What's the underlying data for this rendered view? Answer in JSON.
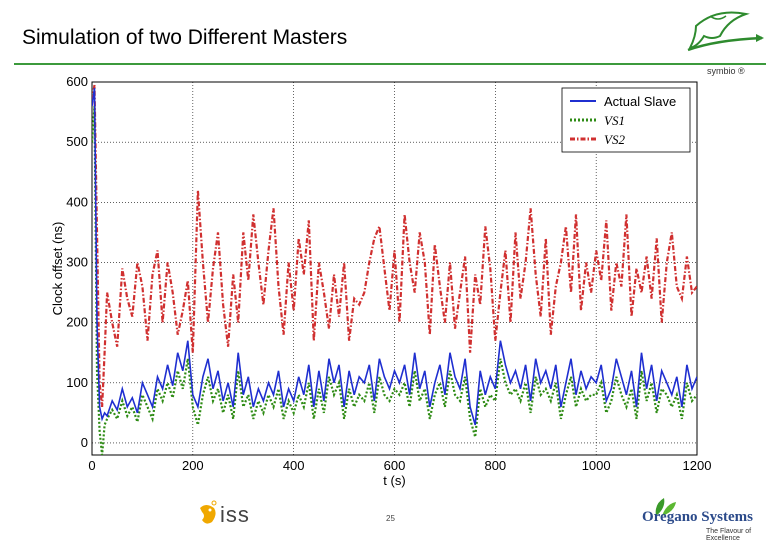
{
  "slide": {
    "title": "Simulation of two Different Masters",
    "page_number": "25"
  },
  "logos": {
    "symbio": {
      "text": "symbio ®",
      "color": "#2e8b2e"
    },
    "iss": {
      "text": "iss",
      "icon": "iss-fish-icon",
      "color": "#f0a800"
    },
    "oregano": {
      "name": "Oregano Systems",
      "tagline": "The Flavour of Excellence",
      "icon": "leaf-icon",
      "color": "#2b4a8a"
    }
  },
  "chart_data": {
    "type": "line",
    "title": "",
    "xlabel": "t (s)",
    "ylabel": "Clock offset (ns)",
    "xlim": [
      0,
      1200
    ],
    "ylim": [
      -20,
      600
    ],
    "x_ticks": [
      0,
      200,
      400,
      600,
      800,
      1000,
      1200
    ],
    "y_ticks": [
      0,
      100,
      200,
      300,
      400,
      500,
      600
    ],
    "grid": true,
    "legend_position": "top-right",
    "series": [
      {
        "name": "Actual Slave",
        "color": "#1f2fd0",
        "style": "solid",
        "x": [
          0,
          5,
          10,
          15,
          20,
          25,
          30,
          40,
          50,
          60,
          70,
          80,
          90,
          100,
          110,
          120,
          130,
          140,
          150,
          160,
          170,
          180,
          190,
          200,
          210,
          220,
          230,
          240,
          250,
          260,
          270,
          280,
          290,
          300,
          310,
          320,
          330,
          340,
          350,
          360,
          370,
          380,
          390,
          400,
          410,
          420,
          430,
          440,
          450,
          460,
          470,
          480,
          490,
          500,
          510,
          520,
          530,
          540,
          550,
          560,
          570,
          580,
          590,
          600,
          610,
          620,
          630,
          640,
          650,
          660,
          670,
          680,
          690,
          700,
          710,
          720,
          730,
          740,
          750,
          760,
          770,
          780,
          790,
          800,
          810,
          820,
          830,
          840,
          850,
          860,
          870,
          880,
          890,
          900,
          910,
          920,
          930,
          940,
          950,
          960,
          970,
          980,
          990,
          1000,
          1010,
          1020,
          1030,
          1040,
          1050,
          1060,
          1070,
          1080,
          1090,
          1100,
          1110,
          1120,
          1130,
          1140,
          1150,
          1160,
          1170,
          1180,
          1190,
          1200
        ],
        "values": [
          560,
          590,
          200,
          60,
          40,
          50,
          45,
          70,
          55,
          90,
          60,
          75,
          50,
          100,
          80,
          60,
          110,
          90,
          130,
          95,
          150,
          120,
          170,
          80,
          60,
          110,
          140,
          90,
          120,
          70,
          100,
          60,
          150,
          80,
          110,
          60,
          90,
          70,
          100,
          80,
          120,
          60,
          90,
          70,
          110,
          80,
          130,
          60,
          120,
          70,
          140,
          100,
          130,
          60,
          120,
          80,
          110,
          100,
          130,
          70,
          140,
          110,
          90,
          120,
          100,
          130,
          80,
          150,
          90,
          120,
          60,
          100,
          130,
          80,
          150,
          110,
          90,
          140,
          60,
          30,
          120,
          80,
          110,
          90,
          170,
          130,
          100,
          120,
          90,
          130,
          70,
          140,
          100,
          120,
          90,
          130,
          60,
          100,
          140,
          80,
          120,
          90,
          110,
          100,
          130,
          70,
          90,
          140,
          110,
          80,
          120,
          60,
          150,
          90,
          130,
          70,
          120,
          100,
          80,
          110,
          60,
          130,
          90,
          110
        ]
      },
      {
        "name": "VS1",
        "color": "#2e8b14",
        "style": "dotted",
        "x": [
          0,
          5,
          10,
          15,
          20,
          25,
          30,
          40,
          50,
          60,
          70,
          80,
          90,
          100,
          110,
          120,
          130,
          140,
          150,
          160,
          170,
          180,
          190,
          200,
          210,
          220,
          230,
          240,
          250,
          260,
          270,
          280,
          290,
          300,
          310,
          320,
          330,
          340,
          350,
          360,
          370,
          380,
          390,
          400,
          410,
          420,
          430,
          440,
          450,
          460,
          470,
          480,
          490,
          500,
          510,
          520,
          530,
          540,
          550,
          560,
          570,
          580,
          590,
          600,
          610,
          620,
          630,
          640,
          650,
          660,
          670,
          680,
          690,
          700,
          710,
          720,
          730,
          740,
          750,
          760,
          770,
          780,
          790,
          800,
          810,
          820,
          830,
          840,
          850,
          860,
          870,
          880,
          890,
          900,
          910,
          920,
          930,
          940,
          950,
          960,
          970,
          980,
          990,
          1000,
          1010,
          1020,
          1030,
          1040,
          1050,
          1060,
          1070,
          1080,
          1090,
          1100,
          1110,
          1120,
          1130,
          1140,
          1150,
          1160,
          1170,
          1180,
          1190,
          1200
        ],
        "values": [
          500,
          560,
          120,
          20,
          -20,
          30,
          40,
          55,
          40,
          70,
          45,
          60,
          35,
          80,
          60,
          40,
          90,
          70,
          100,
          75,
          120,
          90,
          140,
          60,
          30,
          80,
          110,
          70,
          90,
          50,
          80,
          40,
          120,
          60,
          80,
          40,
          70,
          50,
          80,
          60,
          90,
          40,
          70,
          50,
          80,
          60,
          100,
          40,
          90,
          50,
          110,
          80,
          100,
          40,
          90,
          60,
          80,
          70,
          100,
          50,
          110,
          80,
          70,
          90,
          80,
          100,
          60,
          120,
          70,
          90,
          40,
          80,
          100,
          60,
          120,
          80,
          70,
          110,
          40,
          10,
          90,
          60,
          80,
          70,
          140,
          100,
          80,
          90,
          70,
          100,
          50,
          110,
          80,
          90,
          70,
          100,
          40,
          80,
          110,
          60,
          90,
          70,
          80,
          80,
          100,
          50,
          70,
          110,
          80,
          60,
          90,
          40,
          120,
          70,
          100,
          50,
          90,
          80,
          60,
          80,
          40,
          100,
          70,
          80
        ]
      },
      {
        "name": "VS2",
        "color": "#d03030",
        "style": "dashdot",
        "x": [
          0,
          5,
          10,
          15,
          20,
          25,
          30,
          40,
          50,
          60,
          70,
          80,
          90,
          100,
          110,
          120,
          130,
          140,
          150,
          160,
          170,
          180,
          190,
          200,
          210,
          220,
          230,
          240,
          250,
          260,
          270,
          280,
          290,
          300,
          310,
          320,
          330,
          340,
          350,
          360,
          370,
          380,
          390,
          400,
          410,
          420,
          430,
          440,
          450,
          460,
          470,
          480,
          490,
          500,
          510,
          520,
          530,
          540,
          550,
          560,
          570,
          580,
          590,
          600,
          610,
          620,
          630,
          640,
          650,
          660,
          670,
          680,
          690,
          700,
          710,
          720,
          730,
          740,
          750,
          760,
          770,
          780,
          790,
          800,
          810,
          820,
          830,
          840,
          850,
          860,
          870,
          880,
          890,
          900,
          910,
          920,
          930,
          940,
          950,
          960,
          970,
          980,
          990,
          1000,
          1010,
          1020,
          1030,
          1040,
          1050,
          1060,
          1070,
          1080,
          1090,
          1100,
          1110,
          1120,
          1130,
          1140,
          1150,
          1160,
          1170,
          1180,
          1190,
          1200
        ],
        "values": [
          570,
          595,
          350,
          100,
          60,
          150,
          250,
          200,
          160,
          290,
          240,
          210,
          300,
          260,
          170,
          280,
          320,
          200,
          300,
          250,
          180,
          220,
          270,
          150,
          420,
          300,
          200,
          290,
          350,
          230,
          160,
          280,
          200,
          350,
          270,
          380,
          300,
          230,
          320,
          390,
          260,
          180,
          300,
          220,
          340,
          280,
          370,
          170,
          300,
          250,
          190,
          280,
          210,
          300,
          170,
          240,
          230,
          250,
          300,
          340,
          360,
          290,
          220,
          320,
          200,
          380,
          300,
          250,
          350,
          300,
          180,
          330,
          260,
          200,
          300,
          190,
          250,
          310,
          150,
          280,
          230,
          360,
          290,
          170,
          250,
          320,
          200,
          350,
          240,
          300,
          390,
          280,
          210,
          340,
          180,
          260,
          300,
          360,
          250,
          380,
          220,
          300,
          250,
          320,
          270,
          370,
          220,
          300,
          260,
          380,
          210,
          290,
          250,
          310,
          240,
          340,
          200,
          300,
          350,
          260,
          240,
          310,
          250,
          260
        ]
      }
    ]
  }
}
